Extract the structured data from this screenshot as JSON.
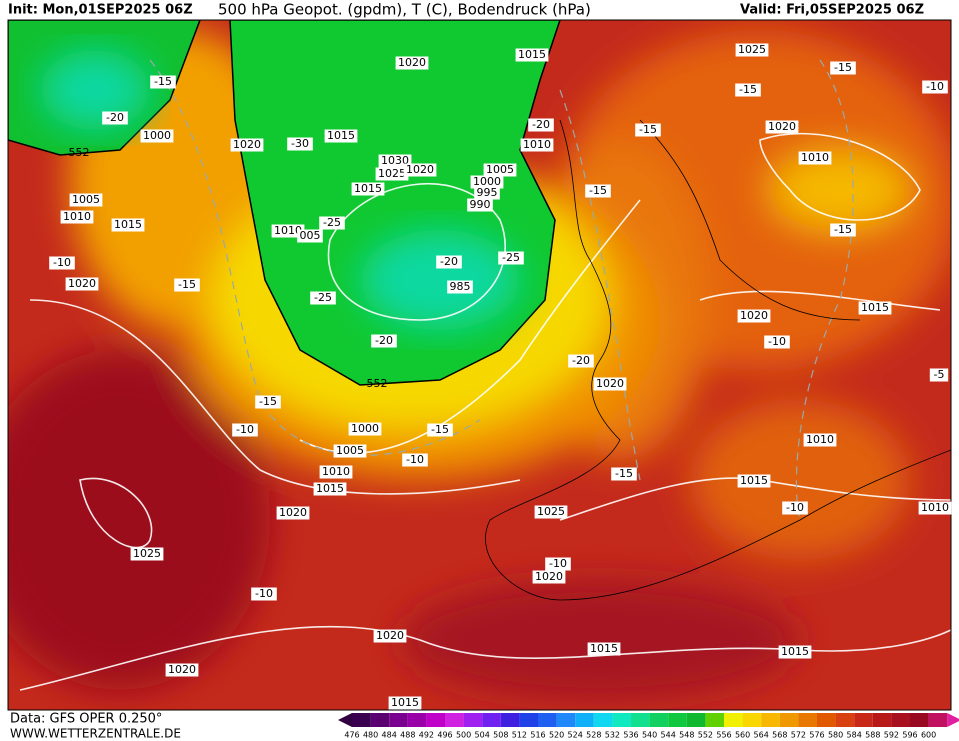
{
  "header": {
    "init": "Init: Mon,01SEP2025 06Z",
    "title": "500 hPa Geopot. (gpdm), T (C), Bodendruck (hPa)",
    "valid": "Valid: Fri,05SEP2025 06Z"
  },
  "footer": {
    "data": "Data: GFS OPER 0.250°",
    "site": "WWW.WETTERZENTRALE.DE"
  },
  "colorbar": {
    "labels": [
      "476",
      "480",
      "484",
      "488",
      "492",
      "496",
      "500",
      "504",
      "508",
      "512",
      "516",
      "520",
      "524",
      "528",
      "532",
      "536",
      "540",
      "544",
      "548",
      "552",
      "556",
      "560",
      "564",
      "568",
      "572",
      "576",
      "580",
      "584",
      "588",
      "592",
      "596",
      "600"
    ]
  },
  "map": {
    "pressure_labels": [
      "1015",
      "1020",
      "1025",
      "1020",
      "1010",
      "1015",
      "1030",
      "1025",
      "1020",
      "1015",
      "1005",
      "1000",
      "995",
      "990",
      "1010",
      "1020",
      "1000",
      "1005",
      "1010",
      "1015",
      "1010",
      "005",
      "985",
      "1020",
      "1015",
      "1020",
      "1020",
      "1000",
      "1005",
      "1010",
      "1015",
      "1020",
      "1010",
      "1015",
      "1010",
      "1025",
      "1020",
      "1025",
      "1020",
      "1015",
      "1015",
      "1020",
      "1015"
    ],
    "temp_labels": [
      "-15",
      "-20",
      "-15",
      "-15",
      "-10",
      "-30",
      "-20",
      "-15",
      "-15",
      "-25",
      "-20",
      "-25",
      "-25",
      "-20",
      "-10",
      "-15",
      "-15",
      "-10",
      "-20",
      "-5",
      "-15",
      "-10",
      "-15",
      "-10",
      "-15",
      "-10",
      "-10",
      "-10"
    ],
    "height_labels": [
      "552",
      "552"
    ]
  }
}
